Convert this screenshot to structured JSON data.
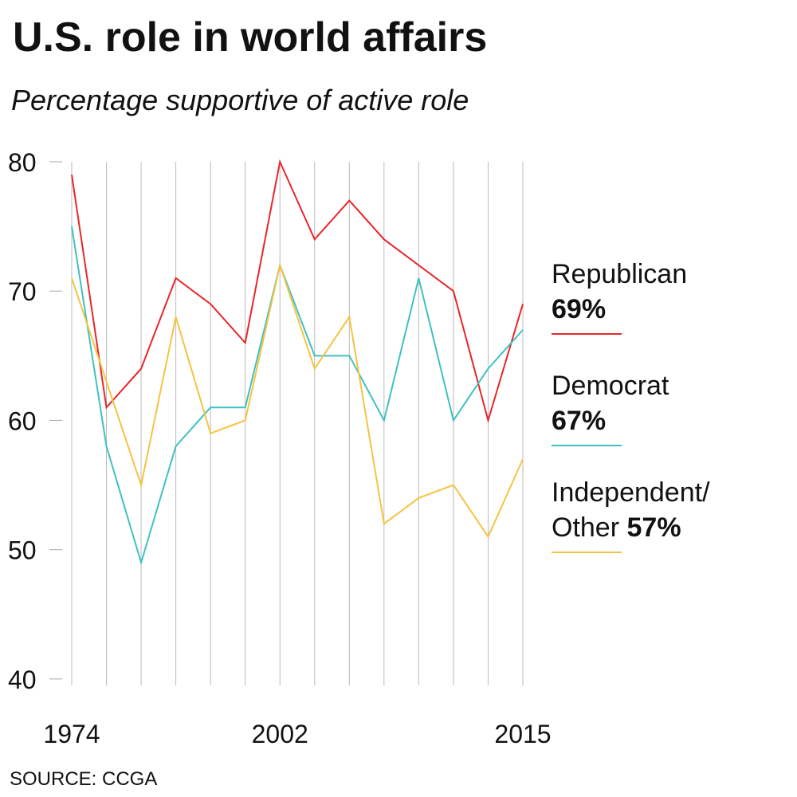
{
  "chart_data": {
    "type": "line",
    "title": "U.S. role in world affairs",
    "subtitle": "Percentage supportive of active role",
    "source": "SOURCE: CCGA",
    "categories": [
      "1974",
      null,
      null,
      null,
      null,
      null,
      "2002",
      null,
      null,
      null,
      null,
      null,
      null,
      "2015"
    ],
    "series": [
      {
        "name": "Republican",
        "color": "#e8262a",
        "values": [
          79,
          61,
          64,
          71,
          69,
          66,
          80,
          74,
          77,
          74,
          72,
          70,
          60,
          69
        ],
        "value_labels": [
          null,
          null,
          null,
          null,
          null,
          null,
          null,
          null,
          null,
          null,
          null,
          null,
          null,
          "69%"
        ]
      },
      {
        "name": "Democrat",
        "color": "#3fc1c0",
        "values": [
          75,
          58,
          49,
          58,
          61,
          61,
          72,
          65,
          65,
          60,
          71,
          60,
          64,
          67
        ],
        "value_labels": [
          null,
          null,
          null,
          null,
          null,
          null,
          null,
          null,
          null,
          null,
          null,
          null,
          null,
          "67%"
        ]
      },
      {
        "name": "Independent/ Other",
        "color": "#f5c342",
        "values": [
          71,
          63,
          55,
          68,
          59,
          60,
          72,
          64,
          68,
          52,
          54,
          55,
          51,
          57
        ],
        "value_labels": [
          null,
          null,
          null,
          null,
          null,
          null,
          null,
          null,
          null,
          null,
          null,
          null,
          null,
          "57%"
        ]
      }
    ],
    "ylim": [
      39.5,
      80
    ],
    "yticks": [
      40,
      50,
      60,
      70,
      80
    ],
    "grid": true
  }
}
